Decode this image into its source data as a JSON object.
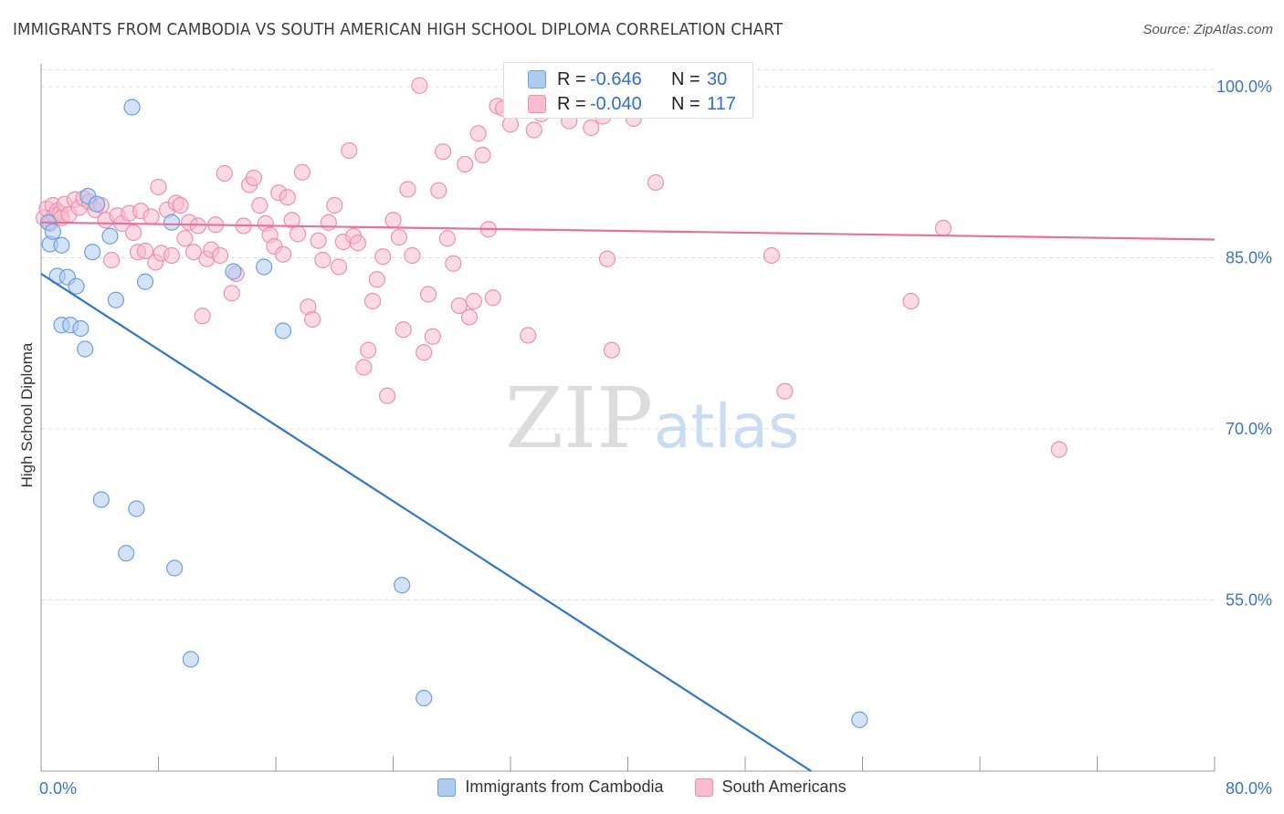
{
  "title": "IMMIGRANTS FROM CAMBODIA VS SOUTH AMERICAN HIGH SCHOOL DIPLOMA CORRELATION CHART",
  "source": "Source: ZipAtlas.com",
  "watermark": {
    "zip": "ZIP",
    "atlas": "atlas"
  },
  "colors": {
    "blue_fill": "#aecbf0",
    "blue_stroke": "#6a9fe0",
    "blue_line": "#2f74d0",
    "pink_fill": "#f7bcd0",
    "pink_stroke": "#ec90b0",
    "pink_line": "#e8709a",
    "axis_text": "#3a74c8",
    "grid": "#dcdcdc"
  },
  "stats": {
    "row1": {
      "r_label": "R =",
      "r_value": "-0.646",
      "n_label": "N =",
      "n_value": "30"
    },
    "row2": {
      "r_label": "R =",
      "r_value": "-0.040",
      "n_label": "N =",
      "n_value": "117"
    }
  },
  "legend": {
    "series1": "Immigrants from Cambodia",
    "series2": "South Americans"
  },
  "chart_data": {
    "type": "scatter",
    "title": "IMMIGRANTS FROM CAMBODIA VS SOUTH AMERICAN HIGH SCHOOL DIPLOMA CORRELATION CHART",
    "xlabel": "",
    "ylabel": "High School Diploma",
    "xlim": [
      0,
      80
    ],
    "ylim": [
      40,
      102
    ],
    "x_tick_labels": [
      "0.0%",
      "80.0%"
    ],
    "y_tick_values": [
      55,
      70,
      85,
      100
    ],
    "y_tick_labels": [
      "55.0%",
      "70.0%",
      "85.0%",
      "100.0%"
    ],
    "grid": true,
    "legend_position": "bottom",
    "series": [
      {
        "name": "Immigrants from Cambodia",
        "points": [
          [
            0.5,
            88.1
          ],
          [
            0.6,
            86.2
          ],
          [
            0.8,
            87.3
          ],
          [
            1.1,
            83.4
          ],
          [
            1.4,
            86.1
          ],
          [
            1.4,
            79.1
          ],
          [
            1.8,
            83.3
          ],
          [
            2.0,
            79.1
          ],
          [
            2.4,
            82.5
          ],
          [
            2.7,
            78.8
          ],
          [
            3.0,
            77.0
          ],
          [
            3.2,
            90.4
          ],
          [
            3.5,
            85.5
          ],
          [
            3.8,
            89.7
          ],
          [
            4.1,
            63.8
          ],
          [
            4.7,
            86.9
          ],
          [
            5.1,
            81.3
          ],
          [
            5.8,
            59.1
          ],
          [
            6.2,
            98.2
          ],
          [
            6.5,
            63.0
          ],
          [
            7.1,
            82.9
          ],
          [
            8.9,
            88.1
          ],
          [
            9.1,
            57.8
          ],
          [
            10.2,
            49.8
          ],
          [
            13.1,
            83.8
          ],
          [
            15.2,
            84.2
          ],
          [
            16.5,
            78.6
          ],
          [
            24.6,
            56.3
          ],
          [
            26.1,
            46.4
          ],
          [
            55.8,
            44.5
          ]
        ]
      },
      {
        "name": "South Americans",
        "points": [
          [
            0.2,
            88.5
          ],
          [
            0.4,
            89.3
          ],
          [
            0.6,
            88.0
          ],
          [
            0.8,
            89.6
          ],
          [
            0.9,
            88.7
          ],
          [
            1.1,
            89.1
          ],
          [
            1.3,
            88.9
          ],
          [
            1.4,
            88.5
          ],
          [
            1.6,
            89.7
          ],
          [
            1.9,
            88.8
          ],
          [
            2.3,
            90.1
          ],
          [
            2.6,
            89.4
          ],
          [
            2.9,
            90.2
          ],
          [
            3.3,
            89.9
          ],
          [
            3.7,
            89.2
          ],
          [
            4.1,
            89.6
          ],
          [
            4.4,
            88.3
          ],
          [
            4.8,
            84.8
          ],
          [
            5.2,
            88.7
          ],
          [
            5.5,
            88.0
          ],
          [
            6.0,
            88.9
          ],
          [
            6.3,
            87.2
          ],
          [
            6.6,
            85.5
          ],
          [
            6.8,
            89.1
          ],
          [
            7.1,
            85.6
          ],
          [
            7.5,
            88.6
          ],
          [
            7.8,
            84.6
          ],
          [
            8.0,
            91.2
          ],
          [
            8.2,
            85.4
          ],
          [
            8.6,
            89.2
          ],
          [
            8.9,
            85.2
          ],
          [
            9.2,
            89.8
          ],
          [
            9.5,
            89.6
          ],
          [
            9.8,
            86.7
          ],
          [
            10.1,
            88.1
          ],
          [
            10.4,
            85.5
          ],
          [
            10.7,
            87.8
          ],
          [
            11.0,
            79.9
          ],
          [
            11.3,
            84.9
          ],
          [
            11.6,
            85.7
          ],
          [
            11.9,
            87.9
          ],
          [
            12.2,
            85.2
          ],
          [
            12.5,
            92.4
          ],
          [
            13.0,
            81.9
          ],
          [
            13.3,
            83.6
          ],
          [
            13.8,
            87.8
          ],
          [
            14.2,
            91.4
          ],
          [
            14.5,
            92.0
          ],
          [
            14.9,
            89.6
          ],
          [
            15.3,
            88.0
          ],
          [
            15.6,
            87.0
          ],
          [
            15.9,
            86.0
          ],
          [
            16.2,
            90.7
          ],
          [
            16.5,
            85.3
          ],
          [
            16.8,
            90.3
          ],
          [
            17.1,
            88.3
          ],
          [
            17.5,
            87.1
          ],
          [
            17.8,
            92.5
          ],
          [
            18.2,
            80.7
          ],
          [
            18.5,
            79.6
          ],
          [
            18.9,
            86.5
          ],
          [
            19.2,
            84.8
          ],
          [
            19.6,
            88.1
          ],
          [
            20.0,
            89.6
          ],
          [
            20.3,
            84.2
          ],
          [
            20.6,
            86.4
          ],
          [
            21.0,
            94.4
          ],
          [
            21.3,
            86.9
          ],
          [
            21.6,
            86.3
          ],
          [
            22.0,
            75.4
          ],
          [
            22.3,
            76.9
          ],
          [
            22.6,
            81.2
          ],
          [
            22.9,
            83.1
          ],
          [
            23.3,
            85.1
          ],
          [
            23.6,
            72.9
          ],
          [
            24.0,
            88.3
          ],
          [
            24.4,
            86.8
          ],
          [
            24.7,
            78.7
          ],
          [
            25.0,
            91.0
          ],
          [
            25.3,
            85.2
          ],
          [
            25.8,
            100.1
          ],
          [
            26.1,
            76.7
          ],
          [
            26.4,
            81.8
          ],
          [
            26.7,
            78.1
          ],
          [
            27.1,
            90.9
          ],
          [
            27.4,
            94.3
          ],
          [
            27.7,
            86.7
          ],
          [
            28.1,
            84.5
          ],
          [
            28.5,
            80.8
          ],
          [
            28.9,
            93.2
          ],
          [
            29.2,
            79.8
          ],
          [
            29.5,
            81.2
          ],
          [
            29.8,
            95.9
          ],
          [
            30.1,
            94.0
          ],
          [
            30.5,
            87.5
          ],
          [
            30.8,
            81.5
          ],
          [
            31.1,
            98.3
          ],
          [
            31.5,
            98.1
          ],
          [
            32.0,
            96.7
          ],
          [
            32.5,
            98.0
          ],
          [
            33.2,
            78.2
          ],
          [
            33.6,
            96.2
          ],
          [
            34.1,
            97.6
          ],
          [
            34.6,
            100.0
          ],
          [
            35.2,
            99.0
          ],
          [
            36.0,
            97.0
          ],
          [
            36.6,
            98.8
          ],
          [
            37.5,
            96.4
          ],
          [
            38.3,
            97.4
          ],
          [
            39.0,
            100.1
          ],
          [
            40.4,
            97.2
          ],
          [
            38.6,
            84.9
          ],
          [
            38.9,
            76.9
          ],
          [
            41.9,
            91.6
          ],
          [
            49.8,
            85.2
          ],
          [
            50.7,
            73.3
          ],
          [
            59.3,
            81.2
          ],
          [
            61.5,
            87.6
          ],
          [
            69.4,
            68.2
          ]
        ]
      }
    ],
    "trend_lines": [
      {
        "name": "Immigrants from Cambodia",
        "from": [
          0,
          83.6
        ],
        "to": [
          52.5,
          40.0
        ]
      },
      {
        "name": "South Americans",
        "from": [
          0,
          88.1
        ],
        "to": [
          80,
          86.6
        ]
      }
    ]
  }
}
